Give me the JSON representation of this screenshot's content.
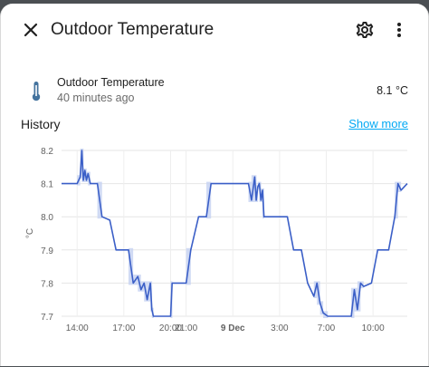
{
  "dialog": {
    "title": "Outdoor Temperature",
    "icons": {
      "close": "close-icon",
      "settings": "gear-icon",
      "more": "dots-vertical-icon"
    }
  },
  "entity": {
    "icon": "thermometer-icon",
    "name": "Outdoor Temperature",
    "last_changed": "40 minutes ago",
    "value": "8.1 °C"
  },
  "history": {
    "title": "History",
    "show_more": "Show more"
  },
  "colors": {
    "line": "#3b5fc7",
    "band": "#c8d3f2",
    "accent": "#03a9f4"
  },
  "chart_data": {
    "type": "line",
    "ylabel": "°C",
    "ylim": [
      7.7,
      8.2
    ],
    "y_ticks": [
      "7.7",
      "7.8",
      "7.9",
      "8.0",
      "8.1",
      "8.2"
    ],
    "x_ticks": [
      {
        "label": "14:00",
        "t": 0
      },
      {
        "label": "17:00",
        "t": 3
      },
      {
        "label": "20:00",
        "t": 6
      },
      {
        "label": "21:00",
        "t": 7
      },
      {
        "label": "9 Dec",
        "t": 10,
        "bold": true
      },
      {
        "label": "3:00",
        "t": 13
      },
      {
        "label": "7:00",
        "t": 16
      },
      {
        "label": "10:00",
        "t": 19
      }
    ],
    "x_range": [
      -1,
      21.2
    ],
    "series": [
      {
        "points": [
          [
            -1,
            8.1
          ],
          [
            0,
            8.1
          ],
          [
            0.2,
            8.12
          ],
          [
            0.3,
            8.2
          ],
          [
            0.4,
            8.11
          ],
          [
            0.5,
            8.14
          ],
          [
            0.6,
            8.11
          ],
          [
            0.7,
            8.13
          ],
          [
            0.85,
            8.1
          ],
          [
            1.3,
            8.1
          ],
          [
            1.6,
            8.0
          ],
          [
            2.1,
            7.99
          ],
          [
            2.5,
            7.9
          ],
          [
            3.3,
            7.9
          ],
          [
            3.6,
            7.8
          ],
          [
            3.9,
            7.82
          ],
          [
            4.1,
            7.78
          ],
          [
            4.3,
            7.8
          ],
          [
            4.5,
            7.75
          ],
          [
            4.7,
            7.8
          ],
          [
            4.8,
            7.72
          ],
          [
            4.9,
            7.7
          ],
          [
            6.0,
            7.7
          ],
          [
            6.1,
            7.8
          ],
          [
            7.0,
            7.8
          ],
          [
            7.3,
            7.9
          ],
          [
            7.8,
            8.0
          ],
          [
            8.3,
            8.0
          ],
          [
            8.6,
            8.1
          ],
          [
            9.5,
            8.1
          ],
          [
            10.5,
            8.1
          ],
          [
            11.0,
            8.1
          ],
          [
            11.2,
            8.05
          ],
          [
            11.4,
            8.12
          ],
          [
            11.5,
            8.05
          ],
          [
            11.6,
            8.09
          ],
          [
            11.7,
            8.1
          ],
          [
            11.8,
            8.05
          ],
          [
            11.9,
            8.08
          ],
          [
            12.0,
            8.0
          ],
          [
            13.5,
            8.0
          ],
          [
            13.9,
            7.9
          ],
          [
            14.4,
            7.9
          ],
          [
            14.8,
            7.8
          ],
          [
            15.2,
            7.76
          ],
          [
            15.4,
            7.8
          ],
          [
            15.6,
            7.74
          ],
          [
            15.8,
            7.71
          ],
          [
            16.1,
            7.7
          ],
          [
            17.6,
            7.7
          ],
          [
            17.8,
            7.78
          ],
          [
            18.0,
            7.72
          ],
          [
            18.2,
            7.8
          ],
          [
            18.4,
            7.79
          ],
          [
            18.9,
            7.8
          ],
          [
            19.3,
            7.9
          ],
          [
            20.0,
            7.9
          ],
          [
            20.4,
            8.0
          ],
          [
            20.6,
            8.1
          ],
          [
            20.8,
            8.08
          ],
          [
            21.2,
            8.1
          ]
        ]
      }
    ]
  }
}
